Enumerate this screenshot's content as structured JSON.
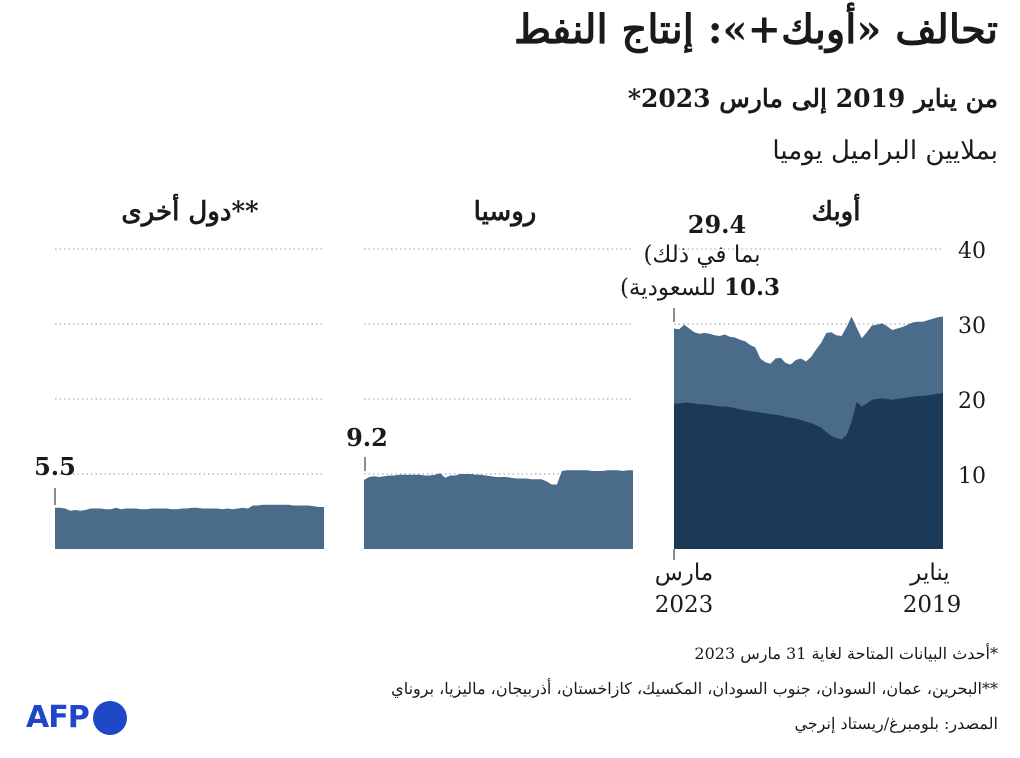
{
  "header": {
    "title": "تحالف «أوبك+»: إنتاج النفط",
    "subtitle": "من يناير 2019 إلى مارس 2023*",
    "unit": "بملايين البراميل يوميا"
  },
  "footer": {
    "note1": "*أحدث البيانات المتاحة لغاية 31 مارس 2023",
    "note2": "**البحرين، عمان، السودان، جنوب السودان، المكسيك، كازاخستان، أذربيجان، ماليزيا، بروناي",
    "source": "المصدر: بلومبرغ/ريستاد إنرجي",
    "logo": "AFP"
  },
  "colors": {
    "dark": "#1b3a57",
    "mid": "#4a6b8a",
    "grid": "#9a9a9a"
  },
  "chart_data": {
    "type": "area",
    "ylim": [
      0,
      40
    ],
    "yticks": [
      10,
      20,
      30,
      40
    ],
    "x_start_label_line1": "يناير",
    "x_start_label_line2": "2019",
    "x_end_label_line1": "مارس",
    "x_end_label_line2": "2023",
    "panels": [
      {
        "name": "أوبك",
        "end_value_label": "29.4",
        "annotation_line1": "(بما في ذلك",
        "annotation_line2_value": "10.3",
        "annotation_line2_text": "للسعودية)",
        "series": [
          {
            "name": "total",
            "values": [
              31.0,
              30.9,
              30.7,
              30.5,
              30.3,
              30.3,
              30.2,
              29.9,
              29.6,
              29.4,
              29.2,
              29.7,
              30.1,
              29.9,
              29.8,
              28.9,
              28.1,
              29.5,
              31.0,
              29.6,
              28.4,
              28.5,
              28.9,
              28.8,
              27.5,
              26.6,
              25.6,
              25.0,
              25.4,
              25.2,
              24.6,
              24.8,
              25.5,
              25.4,
              24.7,
              24.9,
              25.4,
              26.9,
              27.2,
              27.7,
              27.9,
              28.2,
              28.3,
              28.6,
              28.4,
              28.5,
              28.7,
              28.8,
              28.7,
              28.9,
              29.4,
              29.9,
              29.3,
              29.4
            ]
          },
          {
            "name": "saudi_and_rest_dark",
            "values": [
              20.8,
              20.7,
              20.6,
              20.5,
              20.4,
              20.4,
              20.3,
              20.2,
              20.1,
              20.0,
              19.9,
              20.0,
              20.1,
              20.0,
              19.9,
              19.4,
              19.0,
              19.6,
              17.0,
              15.2,
              14.6,
              14.8,
              15.1,
              15.6,
              16.2,
              16.5,
              16.8,
              17.0,
              17.2,
              17.4,
              17.5,
              17.6,
              17.8,
              17.9,
              18.0,
              18.1,
              18.2,
              18.3,
              18.4,
              18.5,
              18.6,
              18.8,
              18.9,
              19.0,
              19.0,
              19.1,
              19.2,
              19.3,
              19.3,
              19.4,
              19.5,
              19.5,
              19.4,
              19.4
            ]
          }
        ]
      },
      {
        "name": "روسيا",
        "end_value_label": "9.2",
        "series": [
          {
            "name": "total",
            "values": [
              10.5,
              10.5,
              10.4,
              10.5,
              10.5,
              10.5,
              10.4,
              10.4,
              10.4,
              10.5,
              10.5,
              10.5,
              10.5,
              10.5,
              10.4,
              8.6,
              8.6,
              9.0,
              9.3,
              9.3,
              9.3,
              9.4,
              9.4,
              9.4,
              9.5,
              9.6,
              9.6,
              9.6,
              9.7,
              9.8,
              9.9,
              9.9,
              10.0,
              10.0,
              10.0,
              9.8,
              9.8,
              9.5,
              10.1,
              9.9,
              9.8,
              9.8,
              9.9,
              9.9,
              9.9,
              9.9,
              9.9,
              9.8,
              9.8,
              9.7,
              9.6,
              9.7,
              9.6,
              9.2
            ]
          }
        ]
      },
      {
        "name": "دول أخرى**",
        "end_value_label": "5.5",
        "series": [
          {
            "name": "total",
            "values": [
              5.6,
              5.6,
              5.7,
              5.8,
              5.8,
              5.8,
              5.8,
              5.9,
              5.9,
              5.9,
              5.9,
              5.9,
              5.9,
              5.8,
              5.8,
              5.4,
              5.5,
              5.4,
              5.3,
              5.4,
              5.3,
              5.4,
              5.4,
              5.4,
              5.4,
              5.5,
              5.5,
              5.4,
              5.4,
              5.3,
              5.3,
              5.4,
              5.4,
              5.4,
              5.4,
              5.3,
              5.3,
              5.4,
              5.4,
              5.4,
              5.3,
              5.5,
              5.3,
              5.3,
              5.4,
              5.4,
              5.4,
              5.2,
              5.1,
              5.2,
              5.1,
              5.4,
              5.5,
              5.5
            ]
          }
        ]
      }
    ]
  }
}
